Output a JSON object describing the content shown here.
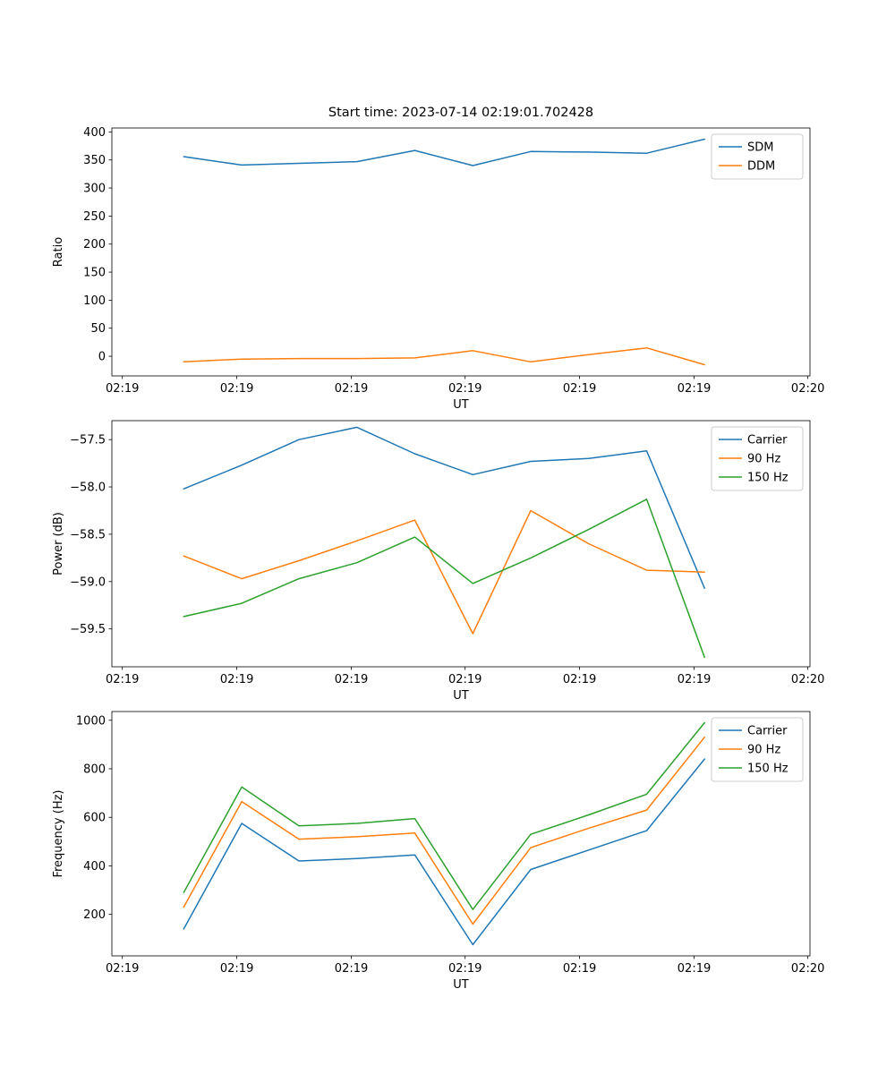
{
  "figure": {
    "title": "Start time: 2023-07-14 02:19:01.702428"
  },
  "colors": {
    "blue": "#1f77b4",
    "orange": "#ff7f0e",
    "green": "#2ca02c"
  },
  "chart_data": [
    {
      "type": "line",
      "name": "ratio-plot",
      "title": "Start time: 2023-07-14 02:19:01.702428",
      "xlabel": "UT",
      "ylabel": "Ratio",
      "xlim": [
        0,
        100
      ],
      "ylim": [
        -35,
        407
      ],
      "xticks": [
        1.5,
        17.9,
        34.3,
        50.6,
        67.0,
        83.4,
        99.7
      ],
      "xtick_labels": [
        "02:19",
        "02:19",
        "02:19",
        "02:19",
        "02:19",
        "02:19",
        "02:20"
      ],
      "yticks": [
        0,
        50,
        100,
        150,
        200,
        250,
        300,
        350,
        400
      ],
      "ytick_labels": [
        "0",
        "50",
        "100",
        "150",
        "200",
        "250",
        "300",
        "350",
        "400"
      ],
      "x": [
        10.3,
        18.6,
        26.8,
        35.1,
        43.4,
        51.7,
        60.0,
        68.3,
        76.6,
        84.9
      ],
      "legend_position": "upper right",
      "grid": false,
      "series": [
        {
          "name": "SDM",
          "color": "#1f77b4",
          "values": [
            356,
            341,
            344,
            347,
            367,
            340,
            365,
            364,
            362,
            387
          ]
        },
        {
          "name": "DDM",
          "color": "#ff7f0e",
          "values": [
            -10,
            -5,
            -4,
            -4,
            -3,
            10,
            -10,
            3,
            15,
            -15
          ]
        }
      ]
    },
    {
      "type": "line",
      "name": "power-plot",
      "title": "",
      "xlabel": "UT",
      "ylabel": "Power (dB)",
      "xlim": [
        0,
        100
      ],
      "ylim": [
        -59.9,
        -57.3
      ],
      "xticks": [
        1.5,
        17.9,
        34.3,
        50.6,
        67.0,
        83.4,
        99.7
      ],
      "xtick_labels": [
        "02:19",
        "02:19",
        "02:19",
        "02:19",
        "02:19",
        "02:19",
        "02:20"
      ],
      "yticks": [
        -59.5,
        -59.0,
        -58.5,
        -58.0,
        -57.5
      ],
      "ytick_labels": [
        "−59.5",
        "−59.0",
        "−58.5",
        "−58.0",
        "−57.5"
      ],
      "x": [
        10.3,
        18.6,
        26.8,
        35.1,
        43.4,
        51.7,
        60.0,
        68.3,
        76.6,
        84.9
      ],
      "legend_position": "upper right",
      "grid": false,
      "series": [
        {
          "name": "Carrier",
          "color": "#1f77b4",
          "values": [
            -58.02,
            -57.77,
            -57.5,
            -57.37,
            -57.65,
            -57.87,
            -57.73,
            -57.7,
            -57.62,
            -59.07
          ]
        },
        {
          "name": "90 Hz",
          "color": "#ff7f0e",
          "values": [
            -58.73,
            -58.97,
            -58.78,
            -58.57,
            -58.35,
            -59.55,
            -58.25,
            -58.6,
            -58.88,
            -58.9
          ]
        },
        {
          "name": "150 Hz",
          "color": "#2ca02c",
          "values": [
            -59.37,
            -59.23,
            -58.97,
            -58.8,
            -58.53,
            -59.02,
            -58.75,
            -58.45,
            -58.13,
            -59.8
          ]
        }
      ]
    },
    {
      "type": "line",
      "name": "frequency-plot",
      "title": "",
      "xlabel": "UT",
      "ylabel": "Frequency (Hz)",
      "xlim": [
        0,
        100
      ],
      "ylim": [
        29,
        1036
      ],
      "xticks": [
        1.5,
        17.9,
        34.3,
        50.6,
        67.0,
        83.4,
        99.7
      ],
      "xtick_labels": [
        "02:19",
        "02:19",
        "02:19",
        "02:19",
        "02:19",
        "02:19",
        "02:20"
      ],
      "yticks": [
        200,
        400,
        600,
        800,
        1000
      ],
      "ytick_labels": [
        "200",
        "400",
        "600",
        "800",
        "1000"
      ],
      "x": [
        10.3,
        18.6,
        26.8,
        35.1,
        43.4,
        51.7,
        60.0,
        68.3,
        76.6,
        84.9
      ],
      "legend_position": "upper right",
      "grid": false,
      "series": [
        {
          "name": "Carrier",
          "color": "#1f77b4",
          "values": [
            140,
            575,
            420,
            430,
            445,
            75,
            385,
            465,
            545,
            840
          ]
        },
        {
          "name": "90 Hz",
          "color": "#ff7f0e",
          "values": [
            230,
            665,
            510,
            520,
            535,
            160,
            475,
            555,
            630,
            930
          ]
        },
        {
          "name": "150 Hz",
          "color": "#2ca02c",
          "values": [
            290,
            725,
            565,
            575,
            595,
            220,
            530,
            610,
            695,
            990
          ]
        }
      ]
    }
  ]
}
